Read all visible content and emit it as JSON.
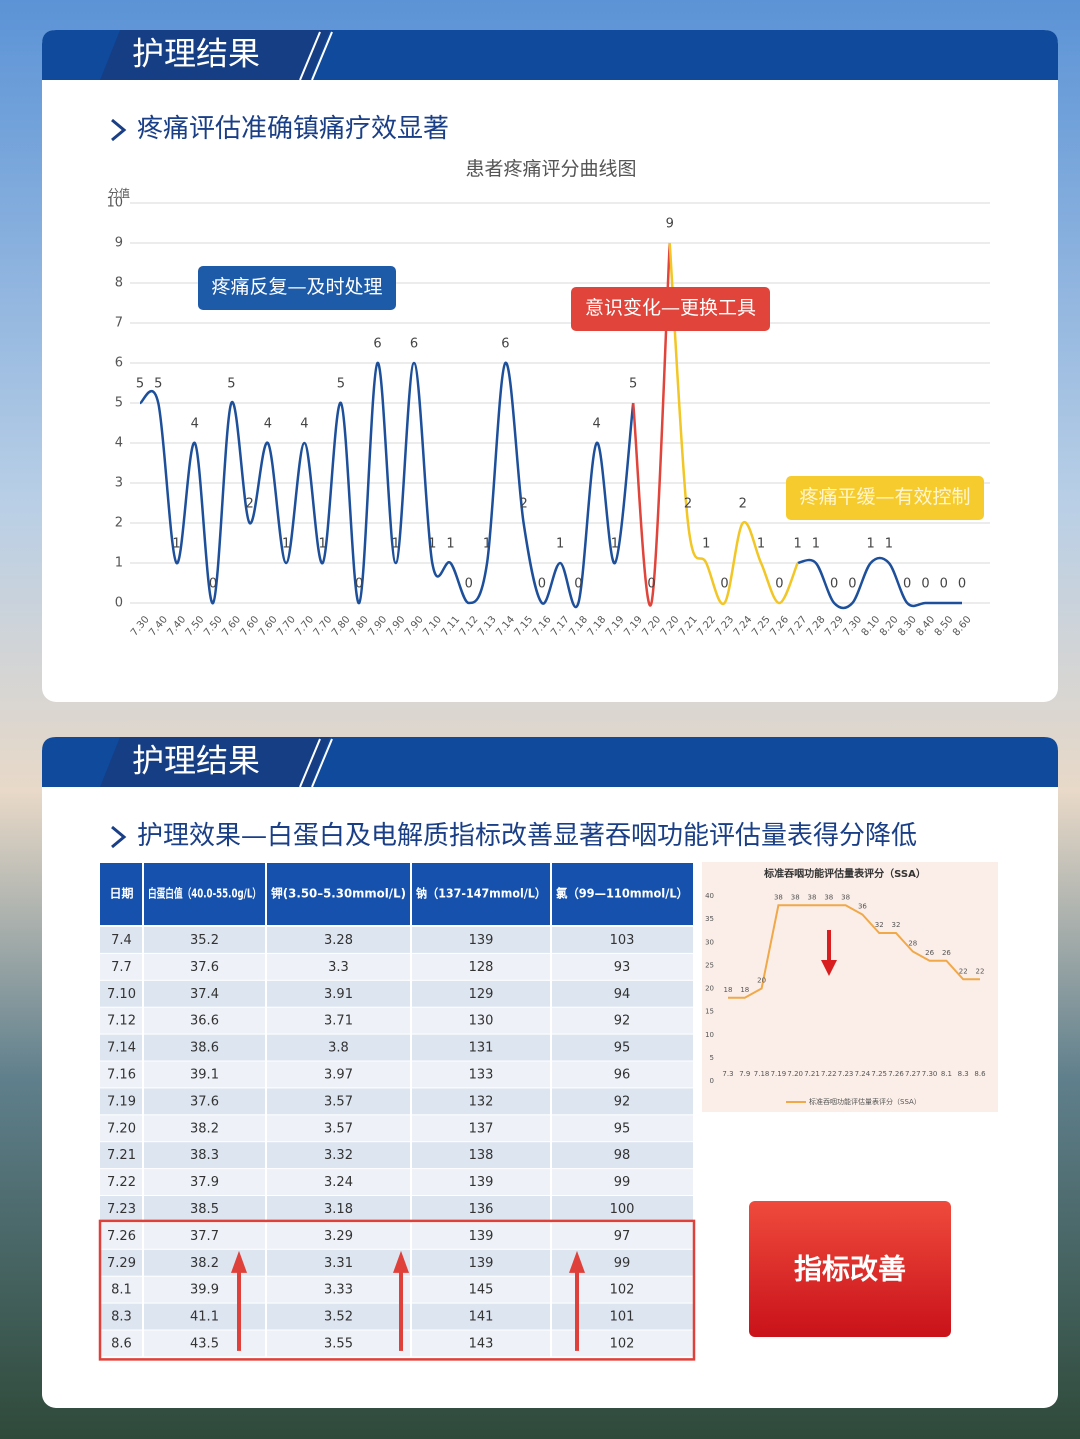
{
  "panels": [
    {
      "header": "护理结果",
      "subtitle": "疼痛评估准确镇痛疗效显著",
      "chart": {
        "type": "line",
        "title": "患者疼痛评分曲线图",
        "y_label": "分值",
        "ylim": [
          0,
          10
        ],
        "yticks": [
          0,
          1,
          2,
          3,
          4,
          5,
          6,
          7,
          8,
          9,
          10
        ],
        "grid": true,
        "categories": [
          "7.30",
          "7.40",
          "7.40",
          "7.50",
          "7.50",
          "7.60",
          "7.60",
          "7.60",
          "7.70",
          "7.70",
          "7.70",
          "7.80",
          "7.80",
          "7.90",
          "7.90",
          "7.90",
          "7.10",
          "7.11",
          "7.12",
          "7.13",
          "7.14",
          "7.15",
          "7.16",
          "7.17",
          "7.18",
          "7.18",
          "7.19",
          "7.19",
          "7.20",
          "7.20",
          "7.21",
          "7.22",
          "7.23",
          "7.24",
          "7.25",
          "7.26",
          "7.27",
          "7.28",
          "7.29",
          "7.30",
          "8.10",
          "8.20",
          "8.30",
          "8.40",
          "8.50",
          "8.60"
        ],
        "series": [
          {
            "color": "#1d4f9a",
            "values": [
              5,
              5,
              1,
              4,
              0,
              5,
              2,
              4,
              1,
              4,
              1,
              5,
              0,
              6,
              1,
              6,
              1,
              1,
              0,
              1,
              6,
              2,
              0,
              1,
              0,
              4,
              1,
              5,
              null,
              null,
              null,
              null,
              null,
              null,
              null,
              null,
              1,
              1,
              0,
              0,
              1,
              1,
              0,
              0,
              0,
              0
            ]
          },
          {
            "color": "#e0443a",
            "values": [
              null,
              null,
              null,
              null,
              null,
              null,
              null,
              null,
              null,
              null,
              null,
              null,
              null,
              null,
              null,
              null,
              null,
              null,
              null,
              null,
              null,
              null,
              null,
              null,
              null,
              null,
              null,
              5,
              0,
              9,
              null,
              null,
              null,
              null,
              null,
              null,
              null,
              null,
              null,
              null,
              null,
              null,
              null,
              null,
              null,
              null
            ]
          },
          {
            "color": "#f2c624",
            "values": [
              null,
              null,
              null,
              null,
              null,
              null,
              null,
              null,
              null,
              null,
              null,
              null,
              null,
              null,
              null,
              null,
              null,
              null,
              null,
              null,
              null,
              null,
              null,
              null,
              null,
              null,
              null,
              null,
              null,
              9,
              2,
              1,
              0,
              2,
              1,
              0,
              1,
              null,
              null,
              null,
              null,
              null,
              null,
              null,
              null,
              null
            ]
          }
        ],
        "annotations": [
          {
            "text": "疼痛反复—及时处理",
            "color": "#1d5aa8"
          },
          {
            "text": "意识变化—更换工具",
            "color": "#e0443a"
          },
          {
            "text": "疼痛平缓—有效控制",
            "color": "#f5cb2e"
          }
        ]
      }
    },
    {
      "header": "护理结果",
      "subtitle": "护理效果—白蛋白及电解质指标改善显著吞咽功能评估量表得分降低",
      "table": {
        "header": [
          "日期",
          "白蛋白值（40.0-55.0g/L）",
          "钾(3.50–5.30mmol/L)",
          "钠（137-147mmol/L）",
          "氯（99—110mmol/L）"
        ],
        "rows": [
          [
            "7.4",
            "35.2",
            "3.28",
            "139",
            "103"
          ],
          [
            "7.7",
            "37.6",
            "3.3",
            "128",
            "93"
          ],
          [
            "7.10",
            "37.4",
            "3.91",
            "129",
            "94"
          ],
          [
            "7.12",
            "36.6",
            "3.71",
            "130",
            "92"
          ],
          [
            "7.14",
            "38.6",
            "3.8",
            "131",
            "95"
          ],
          [
            "7.16",
            "39.1",
            "3.97",
            "133",
            "96"
          ],
          [
            "7.19",
            "37.6",
            "3.57",
            "132",
            "92"
          ],
          [
            "7.20",
            "38.2",
            "3.57",
            "137",
            "95"
          ],
          [
            "7.21",
            "38.3",
            "3.32",
            "138",
            "98"
          ],
          [
            "7.22",
            "37.9",
            "3.24",
            "139",
            "99"
          ],
          [
            "7.23",
            "38.5",
            "3.18",
            "136",
            "100"
          ],
          [
            "7.26",
            "37.7",
            "3.29",
            "139",
            "97"
          ],
          [
            "7.29",
            "38.2",
            "3.31",
            "139",
            "99"
          ],
          [
            "8.1",
            "39.9",
            "3.33",
            "145",
            "102"
          ],
          [
            "8.3",
            "41.1",
            "3.52",
            "141",
            "101"
          ],
          [
            "8.6",
            "43.5",
            "3.55",
            "143",
            "102"
          ]
        ]
      },
      "chart": {
        "type": "line",
        "title": "标准吞咽功能评估量表评分（SSA）",
        "color": "#f0a848",
        "ylim": [
          0,
          40
        ],
        "yticks": [
          0,
          5,
          10,
          15,
          20,
          25,
          30,
          35,
          40
        ],
        "categories": [
          "7.3",
          "7.9",
          "7.18",
          "7.19",
          "7.20",
          "7.21",
          "7.22",
          "7.23",
          "7.24",
          "7.25",
          "7.26",
          "7.27",
          "7.30",
          "8.1",
          "8.3",
          "8.6"
        ],
        "series": [
          {
            "name": "标准吞咽功能评估量表评分（SSA）",
            "values": [
              18,
              18,
              20,
              38,
              38,
              38,
              38,
              38,
              36,
              32,
              32,
              28,
              26,
              26,
              22,
              22
            ]
          }
        ]
      },
      "button": "指标改善"
    }
  ]
}
